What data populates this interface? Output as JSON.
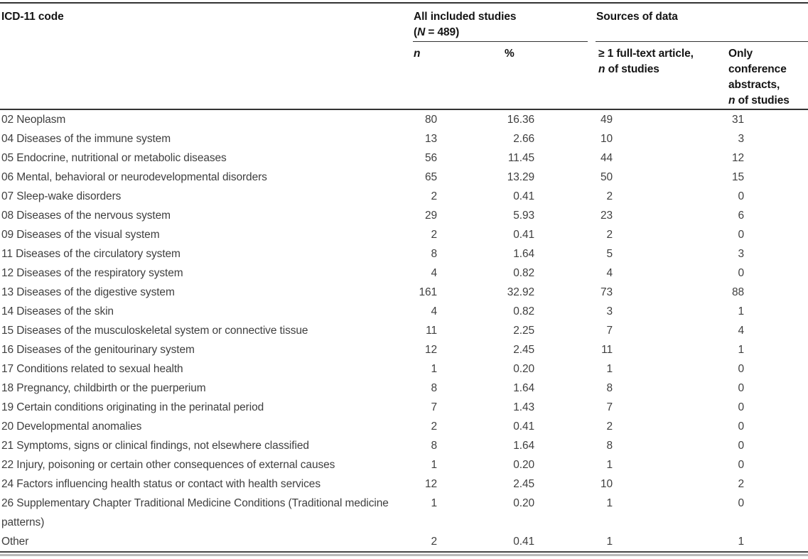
{
  "colors": {
    "header_text": "#141414",
    "body_text": "#3f3f3f",
    "rule_dark": "#333333",
    "rule_gray": "#b9b9b9"
  },
  "header": {
    "icd": "ICD-11 code",
    "all_studies": {
      "line1": "All included studies",
      "paren_open": "(",
      "n_italic": "N",
      "rest": " = 489)"
    },
    "sources": "Sources of data",
    "sub_n": "n",
    "sub_pct": "%",
    "fulltext": {
      "line1": "≥ 1 full-text article,",
      "n_italic": "n",
      "rest": " of studies"
    },
    "conference": {
      "line1": "Only",
      "line2": "conference",
      "line3": "abstracts,",
      "n_italic": "n",
      "rest": " of studies"
    }
  },
  "rows": [
    {
      "label": "02 Neoplasm",
      "n": "80",
      "pct": "16.36",
      "fulltext": "49",
      "conference": "31"
    },
    {
      "label": "04 Diseases of the immune system",
      "n": "13",
      "pct": "2.66",
      "fulltext": "10",
      "conference": "3"
    },
    {
      "label": "05 Endocrine, nutritional or metabolic diseases",
      "n": "56",
      "pct": "11.45",
      "fulltext": "44",
      "conference": "12"
    },
    {
      "label": "06 Mental, behavioral or neurodevelopmental disorders",
      "n": "65",
      "pct": "13.29",
      "fulltext": "50",
      "conference": "15"
    },
    {
      "label": "07 Sleep-wake disorders",
      "n": "2",
      "pct": "0.41",
      "fulltext": "2",
      "conference": "0"
    },
    {
      "label": "08 Diseases of the nervous system",
      "n": "29",
      "pct": "5.93",
      "fulltext": "23",
      "conference": "6"
    },
    {
      "label": "09 Diseases of the visual system",
      "n": "2",
      "pct": "0.41",
      "fulltext": "2",
      "conference": "0"
    },
    {
      "label": "11 Diseases of the circulatory system",
      "n": "8",
      "pct": "1.64",
      "fulltext": "5",
      "conference": "3"
    },
    {
      "label": "12 Diseases of the respiratory system",
      "n": "4",
      "pct": "0.82",
      "fulltext": "4",
      "conference": "0"
    },
    {
      "label": "13 Diseases of the digestive system",
      "n": "161",
      "pct": "32.92",
      "fulltext": "73",
      "conference": "88"
    },
    {
      "label": "14 Diseases of the skin",
      "n": "4",
      "pct": "0.82",
      "fulltext": "3",
      "conference": "1"
    },
    {
      "label": "15 Diseases of the musculoskeletal system or connective tissue",
      "n": "11",
      "pct": "2.25",
      "fulltext": "7",
      "conference": "4"
    },
    {
      "label": "16 Diseases of the genitourinary system",
      "n": "12",
      "pct": "2.45",
      "fulltext": "11",
      "conference": "1"
    },
    {
      "label": "17 Conditions related to sexual health",
      "n": "1",
      "pct": "0.20",
      "fulltext": "1",
      "conference": "0"
    },
    {
      "label": "18 Pregnancy, childbirth or the puerperium",
      "n": "8",
      "pct": "1.64",
      "fulltext": "8",
      "conference": "0"
    },
    {
      "label": "19 Certain conditions originating in the perinatal period",
      "n": "7",
      "pct": "1.43",
      "fulltext": "7",
      "conference": "0"
    },
    {
      "label": "20 Developmental anomalies",
      "n": "2",
      "pct": "0.41",
      "fulltext": "2",
      "conference": "0"
    },
    {
      "label": "21 Symptoms, signs or clinical findings, not elsewhere classified",
      "n": "8",
      "pct": "1.64",
      "fulltext": "8",
      "conference": "0"
    },
    {
      "label": "22 Injury, poisoning or certain other consequences of external causes",
      "n": "1",
      "pct": "0.20",
      "fulltext": "1",
      "conference": "0"
    },
    {
      "label": "24 Factors influencing health status or contact with health services",
      "n": "12",
      "pct": "2.45",
      "fulltext": "10",
      "conference": "2"
    },
    {
      "label": "26 Supplementary Chapter Traditional Medicine Conditions (Traditional medicine patterns)",
      "n": "1",
      "pct": "0.20",
      "fulltext": "1",
      "conference": "0"
    },
    {
      "label": "Other",
      "n": "2",
      "pct": "0.41",
      "fulltext": "1",
      "conference": "1"
    }
  ]
}
